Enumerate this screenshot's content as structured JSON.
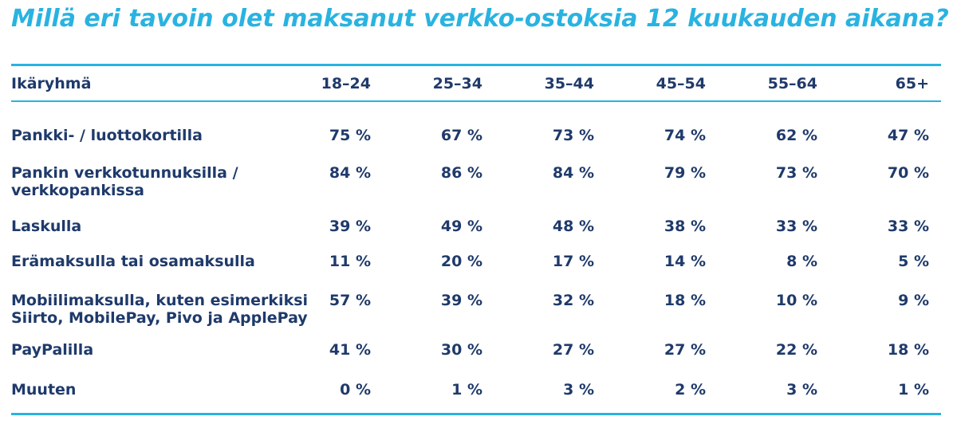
{
  "title": "Millä eri tavoin olet maksanut verkko-ostoksia 12 kuukauden aikana?",
  "colors": {
    "accent": "#29b3e0",
    "text": "#1f3a6b"
  },
  "chart_data": {
    "type": "table",
    "title": "Millä eri tavoin olet maksanut verkko-ostoksia 12 kuukauden aikana?",
    "header_label": "Ikäryhmä",
    "columns": [
      "18–24",
      "25–34",
      "35–44",
      "45–54",
      "55–64",
      "65+"
    ],
    "rows": [
      {
        "label": [
          "Pankki- / luottokortilla"
        ],
        "values": [
          "75 %",
          "67 %",
          "73 %",
          "74 %",
          "62 %",
          "47 %"
        ]
      },
      {
        "label": [
          "Pankin verkkotunnuksilla /",
          "verkkopankissa"
        ],
        "values": [
          "84 %",
          "86 %",
          "84 %",
          "79 %",
          "73 %",
          "70 %"
        ]
      },
      {
        "label": [
          "Laskulla"
        ],
        "values": [
          "39 %",
          "49 %",
          "48 %",
          "38 %",
          "33 %",
          "33 %"
        ]
      },
      {
        "label": [
          "Erämaksulla tai osamaksulla"
        ],
        "values": [
          "11 %",
          "20 %",
          "17 %",
          "14 %",
          "8 %",
          "5 %"
        ]
      },
      {
        "label": [
          "Mobiilimaksulla, kuten esimerkiksi",
          "Siirto, MobilePay, Pivo ja ApplePay"
        ],
        "values": [
          "57 %",
          "39 %",
          "32 %",
          "18 %",
          "10 %",
          "9 %"
        ]
      },
      {
        "label": [
          "PayPalilla"
        ],
        "values": [
          "41 %",
          "30 %",
          "27 %",
          "27 %",
          "22 %",
          "18 %"
        ]
      },
      {
        "label": [
          "Muuten"
        ],
        "values": [
          "0 %",
          "1 %",
          "3 %",
          "2 %",
          "3 %",
          "1 %"
        ]
      }
    ]
  }
}
